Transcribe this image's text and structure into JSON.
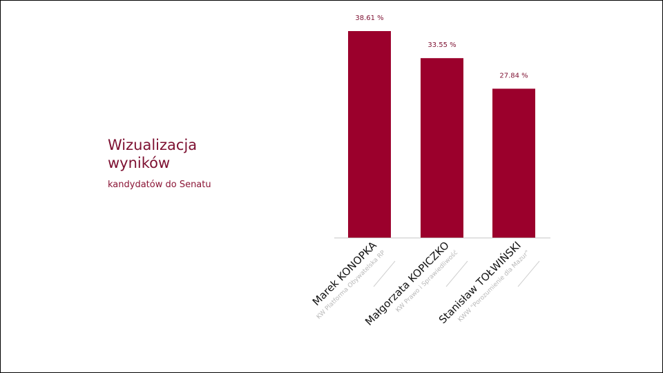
{
  "heading": {
    "title": "Wizualizacja wyników",
    "subtitle": "kandydatów do Senatu"
  },
  "colors": {
    "bar": "#9b002c",
    "title": "#7d1031",
    "value_label": "#7d1031",
    "sub_label": "#b8b8b8",
    "baseline": "#c8c8c8"
  },
  "chart_data": {
    "type": "bar",
    "categories": [
      "Marek KONOPKA",
      "Małgorzata KOPICZKO",
      "Stanisław TOŁWIŃSKI"
    ],
    "category_sublabels": [
      "KW Platforma Obywatelska RP",
      "KW Prawo i Sprawiedliwość",
      "KWW \"Porozumienie dla Mazur\""
    ],
    "values": [
      38.61,
      33.55,
      27.84
    ],
    "data_labels": [
      "38.61 %",
      "33.55 %",
      "27.84 %"
    ],
    "ylim": [
      0,
      38.61
    ],
    "grid": false,
    "legend": "none"
  }
}
